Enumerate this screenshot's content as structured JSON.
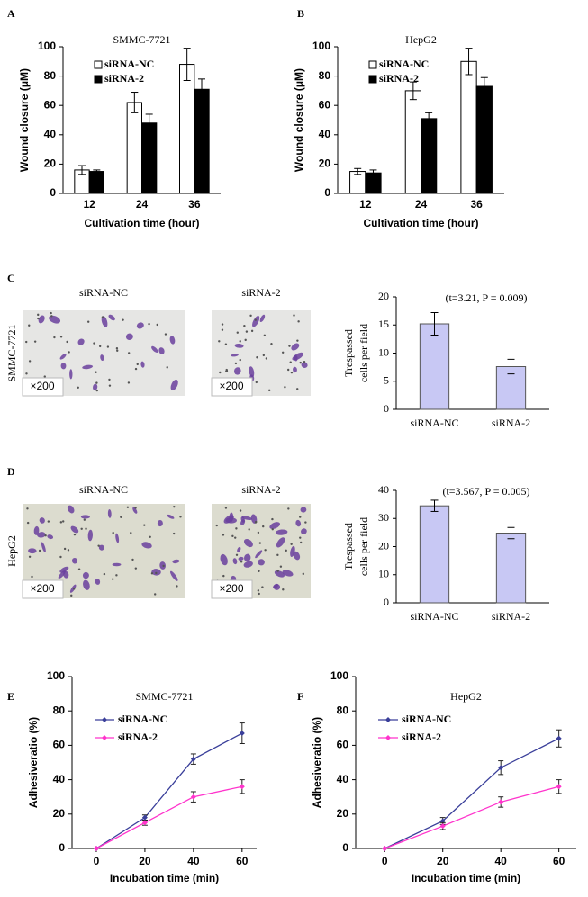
{
  "chart_data": [
    {
      "type": "bar",
      "label": "A",
      "title": "SMMC-7721",
      "xlabel": "Cultivation time (hour)",
      "ylabel": "Wound closure (μM)",
      "categories": [
        "12",
        "24",
        "36"
      ],
      "series": [
        {
          "name": "siRNA-NC",
          "color": "#ffffff",
          "values": [
            16,
            62,
            88
          ],
          "errors": [
            3,
            7,
            11
          ]
        },
        {
          "name": "siRNA-2",
          "color": "#000000",
          "values": [
            15,
            48,
            71
          ],
          "errors": [
            1,
            6,
            7
          ]
        }
      ],
      "ylim": [
        0,
        100
      ],
      "yticks": [
        0,
        20,
        40,
        60,
        80,
        100
      ],
      "legend": "upper left"
    },
    {
      "type": "bar",
      "label": "B",
      "title": "HepG2",
      "xlabel": "Cultivation time (hour)",
      "ylabel": "Wound closure (μM)",
      "categories": [
        "12",
        "24",
        "36"
      ],
      "series": [
        {
          "name": "siRNA-NC",
          "color": "#ffffff",
          "values": [
            15,
            70,
            90
          ],
          "errors": [
            2,
            6,
            9
          ]
        },
        {
          "name": "siRNA-2",
          "color": "#000000",
          "values": [
            14,
            51,
            73
          ],
          "errors": [
            2,
            4,
            6
          ]
        }
      ],
      "ylim": [
        0,
        100
      ],
      "yticks": [
        0,
        20,
        40,
        60,
        80,
        100
      ],
      "legend": "upper left"
    },
    {
      "type": "bar",
      "annotation": "(t=3.21, P = 0.009)",
      "ylabel": [
        "Trespassed",
        "cells per field"
      ],
      "categories": [
        "siRNA-NC",
        "siRNA-2"
      ],
      "values": [
        15.2,
        7.6
      ],
      "errors": [
        2,
        1.3
      ],
      "color": "#c8c8f4",
      "ylim": [
        0,
        20
      ],
      "yticks": [
        0,
        5,
        10,
        15,
        20
      ]
    },
    {
      "type": "bar",
      "annotation": "(t=3.567, P = 0.005)",
      "ylabel": [
        "Trespassed",
        "cells per field"
      ],
      "categories": [
        "siRNA-NC",
        "siRNA-2"
      ],
      "values": [
        34.5,
        24.8
      ],
      "errors": [
        2,
        2
      ],
      "color": "#c8c8f4",
      "ylim": [
        0,
        40
      ],
      "yticks": [
        0,
        10,
        20,
        30,
        40
      ]
    },
    {
      "type": "line",
      "label": "E",
      "title": "SMMC-7721",
      "xlabel": "Incubation time (min)",
      "ylabel": "Adhesiveratio (%)",
      "x": [
        0,
        20,
        40,
        60
      ],
      "series": [
        {
          "name": "siRNA-NC",
          "color": "#3a3f9a",
          "values": [
            0,
            18,
            52,
            67
          ],
          "errors": [
            0,
            1.5,
            3,
            6
          ]
        },
        {
          "name": "siRNA-2",
          "color": "#ff33cc",
          "values": [
            0,
            15,
            30,
            36
          ],
          "errors": [
            0,
            1.5,
            3,
            4
          ]
        }
      ],
      "xlim": [
        -10,
        66
      ],
      "xticks": [
        0,
        20,
        40,
        60
      ],
      "ylim": [
        0,
        100
      ],
      "yticks": [
        0,
        20,
        40,
        60,
        80,
        100
      ],
      "legend": "upper left"
    },
    {
      "type": "line",
      "label": "F",
      "title": "HepG2",
      "xlabel": "Incubation time (min)",
      "ylabel": "Adhesiveratio (%)",
      "x": [
        0,
        20,
        40,
        60
      ],
      "series": [
        {
          "name": "siRNA-NC",
          "color": "#3a3f9a",
          "values": [
            0,
            16,
            47,
            64
          ],
          "errors": [
            0,
            2,
            4,
            5
          ]
        },
        {
          "name": "siRNA-2",
          "color": "#ff33cc",
          "values": [
            0,
            13,
            27,
            36
          ],
          "errors": [
            0,
            2,
            3,
            4
          ]
        }
      ],
      "xlim": [
        -10,
        66
      ],
      "xticks": [
        0,
        20,
        40,
        60
      ],
      "ylim": [
        0,
        100
      ],
      "yticks": [
        0,
        20,
        40,
        60,
        80,
        100
      ],
      "legend": "upper left"
    }
  ],
  "micrographs": [
    {
      "label": "C",
      "row_label": "SMMC-7721",
      "titles": [
        "siRNA-NC",
        "siRNA-2"
      ],
      "scale": [
        "×200",
        "×200"
      ]
    },
    {
      "label": "D",
      "row_label": "HepG2",
      "titles": [
        "siRNA-NC",
        "siRNA-2"
      ],
      "scale": [
        "×200",
        "×200"
      ]
    }
  ]
}
